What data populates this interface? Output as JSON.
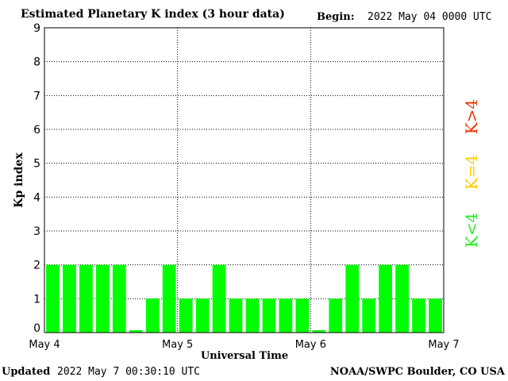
{
  "header": {
    "title": "Estimated Planetary K index (3 hour data)",
    "begin_label": "Begin:",
    "begin_value": "2022 May 04 0000 UTC"
  },
  "footer": {
    "updated_label": "Updated",
    "updated_value": "2022 May  7 00:30:10 UTC",
    "credit": "NOAA/SWPC Boulder, CO USA"
  },
  "chart_data": {
    "type": "bar",
    "ylabel": "Kp index",
    "xlabel": "Universal Time",
    "ylim": [
      0,
      9
    ],
    "yticks": [
      "0",
      "1",
      "2",
      "3",
      "4",
      "5",
      "6",
      "7",
      "8",
      "9"
    ],
    "xticks": [
      "May 4",
      "May 5",
      "May 6",
      "May 7"
    ],
    "grid": true,
    "bar_color": "#00ff00",
    "values": [
      2,
      2,
      2,
      2,
      2,
      0.07,
      1,
      2,
      1,
      1,
      2,
      1,
      1,
      1,
      1,
      1,
      0.07,
      1,
      2,
      1,
      2,
      2,
      1,
      1
    ],
    "legend": [
      {
        "label": "K<4",
        "color": "#22ee22"
      },
      {
        "label": "K=4",
        "color": "#ffcc00"
      },
      {
        "label": "K>4",
        "color": "#ee3300"
      }
    ]
  }
}
